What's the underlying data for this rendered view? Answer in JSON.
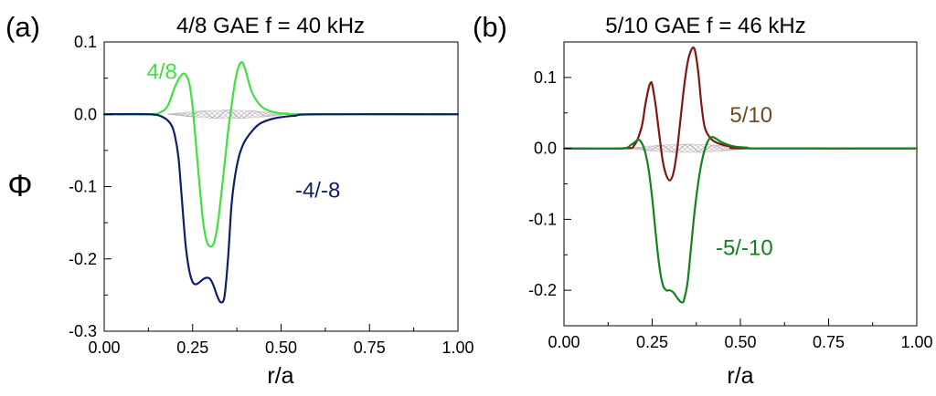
{
  "figure": {
    "ylabel_symbol": "Φ"
  },
  "chart_data": [
    {
      "type": "line",
      "panel_label": "(a)",
      "title": "4/8 GAE  f = 40 kHz",
      "xlabel": "r/a",
      "ylabel": "Φ",
      "xlim": [
        0,
        1
      ],
      "ylim": [
        -0.3,
        0.1
      ],
      "xticks": [
        0,
        0.25,
        0.5,
        0.75,
        1.0
      ],
      "xtick_labels": [
        "0.00",
        "0.25",
        "0.50",
        "0.75",
        "1.00"
      ],
      "yticks": [
        0.1,
        0.0,
        -0.1,
        -0.2,
        -0.3
      ],
      "ytick_labels": [
        "0.1",
        "0.0",
        "-0.1",
        "-0.2",
        "-0.3"
      ],
      "grid": false,
      "series": [
        {
          "name": "4/8",
          "color": "#3fe03f",
          "x": [
            0,
            0.13,
            0.16,
            0.18,
            0.2,
            0.215,
            0.227,
            0.24,
            0.25,
            0.26,
            0.27,
            0.28,
            0.29,
            0.3,
            0.31,
            0.32,
            0.33,
            0.34,
            0.35,
            0.36,
            0.37,
            0.38,
            0.39,
            0.4,
            0.41,
            0.42,
            0.44,
            0.46,
            0.49,
            0.52,
            0.56,
            1.0
          ],
          "y": [
            0,
            0,
            0.003,
            0.012,
            0.038,
            0.052,
            0.056,
            0.044,
            0.01,
            -0.045,
            -0.1,
            -0.15,
            -0.176,
            -0.183,
            -0.178,
            -0.155,
            -0.115,
            -0.07,
            -0.025,
            0.012,
            0.045,
            0.066,
            0.072,
            0.06,
            0.042,
            0.028,
            0.013,
            0.006,
            0.002,
            0.001,
            0,
            0
          ]
        },
        {
          "name": "-4/-8",
          "color": "#101d6b",
          "x": [
            0,
            0.13,
            0.17,
            0.19,
            0.2,
            0.21,
            0.22,
            0.23,
            0.24,
            0.25,
            0.26,
            0.27,
            0.28,
            0.29,
            0.3,
            0.31,
            0.32,
            0.33,
            0.34,
            0.35,
            0.36,
            0.37,
            0.38,
            0.39,
            0.4,
            0.42,
            0.44,
            0.47,
            0.5,
            0.54,
            0.6,
            1.0
          ],
          "y": [
            0,
            0,
            -0.005,
            -0.015,
            -0.03,
            -0.06,
            -0.12,
            -0.18,
            -0.215,
            -0.232,
            -0.235,
            -0.232,
            -0.228,
            -0.226,
            -0.228,
            -0.238,
            -0.252,
            -0.26,
            -0.252,
            -0.2,
            -0.125,
            -0.085,
            -0.06,
            -0.045,
            -0.035,
            -0.022,
            -0.013,
            -0.007,
            -0.004,
            -0.002,
            0,
            0
          ]
        }
      ],
      "annotations": [
        {
          "text": "4/8",
          "x": 0.12,
          "y": 0.059,
          "color": "#3fe03f"
        },
        {
          "text": "-4/-8",
          "x": 0.54,
          "y": -0.105,
          "color": "#101d6b"
        }
      ]
    },
    {
      "type": "line",
      "panel_label": "(b)",
      "title": "5/10 GAE  f = 46 kHz",
      "xlabel": "r/a",
      "ylabel": "",
      "xlim": [
        0,
        1
      ],
      "ylim": [
        -0.25,
        0.15
      ],
      "xticks": [
        0,
        0.25,
        0.5,
        0.75,
        1.0
      ],
      "xtick_labels": [
        "0.00",
        "0.25",
        "0.50",
        "0.75",
        "1.00"
      ],
      "yticks": [
        0.1,
        0.0,
        -0.1,
        -0.2
      ],
      "ytick_labels": [
        "0.1",
        "0.0",
        "-0.1",
        "-0.2"
      ],
      "grid": false,
      "series": [
        {
          "name": "5/10",
          "color": "#7f1515",
          "x": [
            0,
            0.17,
            0.2,
            0.22,
            0.23,
            0.24,
            0.245,
            0.25,
            0.26,
            0.27,
            0.28,
            0.29,
            0.3,
            0.31,
            0.32,
            0.33,
            0.34,
            0.35,
            0.36,
            0.37,
            0.38,
            0.39,
            0.4,
            0.42,
            0.45,
            0.48,
            0.52,
            1.0
          ],
          "y": [
            0,
            0,
            0.005,
            0.03,
            0.06,
            0.085,
            0.092,
            0.09,
            0.06,
            0.02,
            -0.018,
            -0.038,
            -0.045,
            -0.035,
            -0.005,
            0.04,
            0.085,
            0.12,
            0.138,
            0.14,
            0.11,
            0.06,
            0.028,
            0.012,
            0.005,
            0.002,
            0,
            0
          ]
        },
        {
          "name": "-5/-10",
          "color": "#15801e",
          "x": [
            0,
            0.16,
            0.19,
            0.21,
            0.22,
            0.23,
            0.24,
            0.25,
            0.26,
            0.27,
            0.28,
            0.29,
            0.3,
            0.31,
            0.32,
            0.33,
            0.335,
            0.34,
            0.35,
            0.36,
            0.37,
            0.38,
            0.39,
            0.4,
            0.41,
            0.42,
            0.43,
            0.45,
            0.48,
            0.52,
            0.56,
            1.0
          ],
          "y": [
            0,
            0,
            0.005,
            0.012,
            0.008,
            -0.005,
            -0.03,
            -0.07,
            -0.12,
            -0.165,
            -0.192,
            -0.2,
            -0.2,
            -0.203,
            -0.21,
            -0.216,
            -0.217,
            -0.214,
            -0.19,
            -0.14,
            -0.09,
            -0.05,
            -0.02,
            0.0,
            0.012,
            0.016,
            0.014,
            0.008,
            0.003,
            0.001,
            0,
            0
          ]
        }
      ],
      "annotations": [
        {
          "text": "5/10",
          "x": 0.47,
          "y": 0.047,
          "color": "#6e4a22"
        },
        {
          "text": "-5/-10",
          "x": 0.43,
          "y": -0.14,
          "color": "#15801e"
        }
      ]
    }
  ]
}
